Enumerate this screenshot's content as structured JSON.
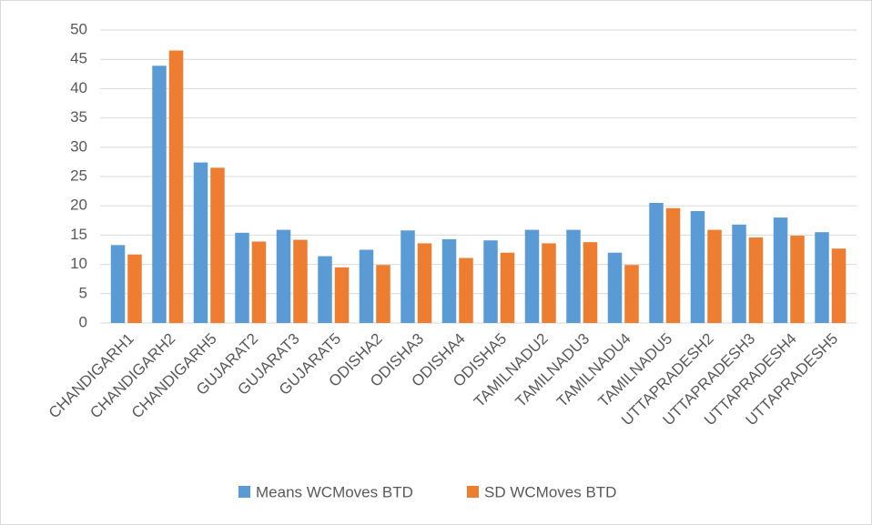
{
  "chart_data": {
    "type": "bar",
    "categories": [
      "CHANDIGARH1",
      "CHANDIGARH2",
      "CHANDIGARH5",
      "GUJARAT2",
      "GUJARAT3",
      "GUJARAT5",
      "ODISHA2",
      "ODISHA3",
      "ODISHA4",
      "ODISHA5",
      "TAMILNADU2",
      "TAMILNADU3",
      "TAMILNADU4",
      "TAMILNADU5",
      "UTTAPRADESH2",
      "UTTAPRADESH3",
      "UTTAPRADESH4",
      "UTTAPRADESH5"
    ],
    "series": [
      {
        "name": "Means WCMoves BTD",
        "color": "#5b9bd5",
        "values": [
          13.3,
          43.9,
          27.4,
          15.4,
          15.9,
          11.4,
          12.5,
          15.8,
          14.3,
          14.1,
          15.9,
          15.9,
          12.0,
          20.5,
          19.1,
          16.8,
          18.0,
          15.5
        ]
      },
      {
        "name": "SD WCMoves BTD",
        "color": "#ed7d31",
        "values": [
          11.7,
          46.5,
          26.5,
          13.9,
          14.2,
          9.5,
          9.9,
          13.6,
          11.1,
          12.0,
          13.6,
          13.8,
          9.9,
          19.6,
          15.9,
          14.6,
          14.9,
          12.7
        ]
      }
    ],
    "ylim": [
      0,
      50
    ],
    "yticks": [
      0,
      5,
      10,
      15,
      20,
      25,
      30,
      35,
      40,
      45,
      50
    ],
    "grid": true,
    "legend": "bottom"
  }
}
